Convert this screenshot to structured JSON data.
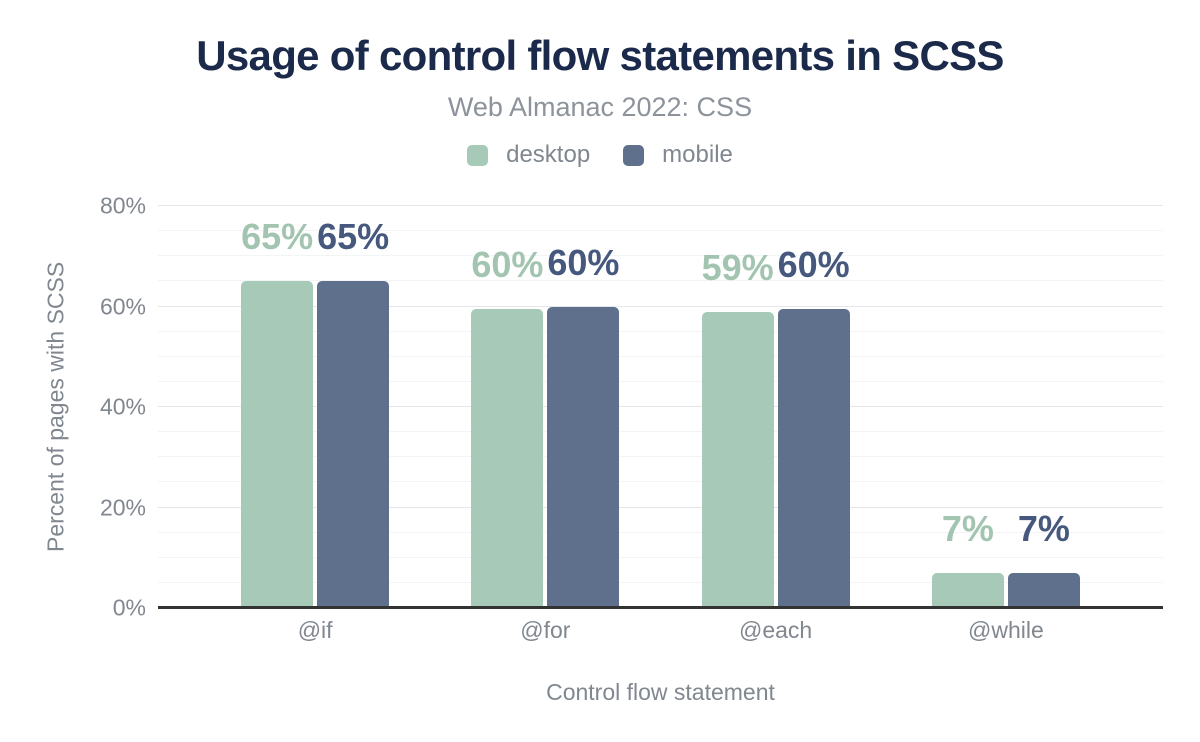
{
  "colors": {
    "background": "#ffffff",
    "title_text": "#1b2a4a",
    "muted_text": "#80878f",
    "subtitle_text": "#8d939b",
    "desktop_series": "#a7c9b7",
    "mobile_series": "#5f708d",
    "desktop_label": "#a2c4b0",
    "mobile_label": "#46587d",
    "gridline_minor": "#f3f4f6",
    "gridline_major": "#e4e6e9",
    "axis_line": "#333333"
  },
  "chart_data": {
    "type": "bar",
    "title": "Usage of control flow statements in SCSS",
    "subtitle": "Web Almanac 2022: CSS",
    "xlabel": "Control flow statement",
    "ylabel": "Percent of pages with SCSS",
    "categories": [
      "@if",
      "@for",
      "@each",
      "@while"
    ],
    "series": [
      {
        "name": "desktop",
        "color": "#a7c9b7",
        "label_color": "#a2c4b0",
        "values": [
          65,
          59.5,
          59,
          7
        ],
        "labels": [
          "65%",
          "60%",
          "59%",
          "7%"
        ]
      },
      {
        "name": "mobile",
        "color": "#5f708d",
        "label_color": "#46587d",
        "values": [
          65,
          60,
          59.5,
          7
        ],
        "labels": [
          "65%",
          "60%",
          "60%",
          "7%"
        ]
      }
    ],
    "ylim": [
      0,
      80
    ],
    "yticks": [
      {
        "value": 80,
        "label": "80%"
      },
      {
        "value": 60,
        "label": "60%"
      },
      {
        "value": 40,
        "label": "40%"
      },
      {
        "value": 20,
        "label": "20%"
      },
      {
        "value": 0,
        "label": "0%"
      }
    ],
    "grid": {
      "minor_step": 5,
      "major_step": 20
    },
    "legend_position": "top"
  }
}
